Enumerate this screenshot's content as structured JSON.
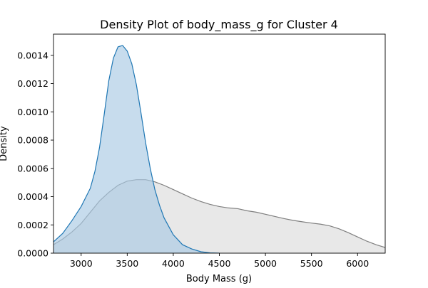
{
  "chart_data": {
    "type": "area",
    "title": "Density Plot of body_mass_g for Cluster 4",
    "xlabel": "Body Mass (g)",
    "ylabel": "Density",
    "xlim": [
      2700,
      6300
    ],
    "ylim": [
      0,
      0.00155
    ],
    "x_ticks": [
      3000,
      3500,
      4000,
      4500,
      5000,
      5500,
      6000
    ],
    "y_ticks": [
      0.0,
      0.0002,
      0.0004,
      0.0006,
      0.0008,
      0.001,
      0.0012,
      0.0014
    ],
    "x_tick_labels": [
      "3000",
      "3500",
      "4000",
      "4500",
      "5000",
      "5500",
      "6000"
    ],
    "y_tick_labels": [
      "0.0000",
      "0.0002",
      "0.0004",
      "0.0006",
      "0.0008",
      "0.0010",
      "0.0012",
      "0.0014"
    ],
    "grid": false,
    "series": [
      {
        "color": "#7f7f7f",
        "fill": "#dcdcdc",
        "points": [
          [
            2700,
            6e-05
          ],
          [
            2800,
            0.0001
          ],
          [
            2900,
            0.00015
          ],
          [
            3000,
            0.00021
          ],
          [
            3100,
            0.00029
          ],
          [
            3200,
            0.00037
          ],
          [
            3300,
            0.00043
          ],
          [
            3400,
            0.00048
          ],
          [
            3500,
            0.00051
          ],
          [
            3600,
            0.00052
          ],
          [
            3700,
            0.00052
          ],
          [
            3800,
            0.000505
          ],
          [
            3900,
            0.00048
          ],
          [
            4000,
            0.00045
          ],
          [
            4100,
            0.00042
          ],
          [
            4200,
            0.00039
          ],
          [
            4300,
            0.000365
          ],
          [
            4400,
            0.000345
          ],
          [
            4500,
            0.00033
          ],
          [
            4600,
            0.00032
          ],
          [
            4700,
            0.000315
          ],
          [
            4800,
            0.0003
          ],
          [
            4900,
            0.00029
          ],
          [
            5000,
            0.000275
          ],
          [
            5100,
            0.00026
          ],
          [
            5200,
            0.000245
          ],
          [
            5300,
            0.000232
          ],
          [
            5400,
            0.000222
          ],
          [
            5500,
            0.000213
          ],
          [
            5600,
            0.000205
          ],
          [
            5700,
            0.000193
          ],
          [
            5800,
            0.000172
          ],
          [
            5900,
            0.000145
          ],
          [
            6000,
            0.000115
          ],
          [
            6100,
            8.5e-05
          ],
          [
            6200,
            6e-05
          ],
          [
            6300,
            4e-05
          ]
        ]
      },
      {
        "color": "#1f77b4",
        "fill": "#a9c9e4",
        "points": [
          [
            2700,
            8e-05
          ],
          [
            2800,
            0.00014
          ],
          [
            2900,
            0.00023
          ],
          [
            3000,
            0.00033
          ],
          [
            3100,
            0.00046
          ],
          [
            3150,
            0.00058
          ],
          [
            3200,
            0.00075
          ],
          [
            3250,
            0.00098
          ],
          [
            3300,
            0.00122
          ],
          [
            3350,
            0.00138
          ],
          [
            3400,
            0.00146
          ],
          [
            3450,
            0.00147
          ],
          [
            3500,
            0.00143
          ],
          [
            3550,
            0.00134
          ],
          [
            3600,
            0.00119
          ],
          [
            3650,
            0.00099
          ],
          [
            3700,
            0.00078
          ],
          [
            3750,
            0.0006
          ],
          [
            3800,
            0.00045
          ],
          [
            3850,
            0.00034
          ],
          [
            3900,
            0.00025
          ],
          [
            4000,
            0.00013
          ],
          [
            4100,
            6e-05
          ],
          [
            4200,
            3e-05
          ],
          [
            4300,
            1e-05
          ],
          [
            4400,
            2e-06
          ],
          [
            4500,
            0.0
          ]
        ]
      }
    ]
  }
}
